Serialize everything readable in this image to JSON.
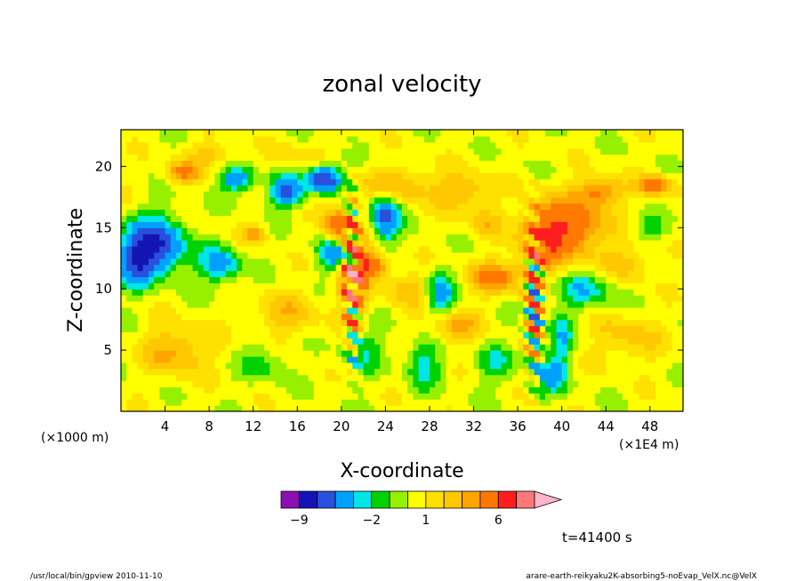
{
  "chart_data": {
    "type": "heatmap",
    "title": "zonal velocity",
    "xlabel": "X-coordinate",
    "ylabel": "Z-coordinate",
    "x_unit_left": "(×1000 m)",
    "x_unit_right": "(×1E4 m)",
    "xlim": [
      0,
      51
    ],
    "ylim": [
      0,
      23
    ],
    "x_ticks": [
      4,
      8,
      12,
      16,
      20,
      24,
      28,
      32,
      36,
      40,
      44,
      48
    ],
    "y_ticks": [
      5,
      10,
      15,
      20
    ],
    "x_tick_labels": [
      "4",
      "8",
      "12",
      "16",
      "20",
      "24",
      "28",
      "32",
      "36",
      "40",
      "44",
      "48"
    ],
    "y_tick_labels": [
      "5",
      "10",
      "15",
      "20"
    ],
    "grid": false,
    "colorbar": {
      "levels": [
        -12,
        -9,
        -7,
        -5,
        -3,
        -2,
        -1,
        0,
        1,
        2,
        3,
        4,
        6,
        9,
        12
      ],
      "colors": [
        "#e60aa5",
        "#8c0fb4",
        "#1414b4",
        "#2850dc",
        "#00a0ff",
        "#00e6e6",
        "#00d200",
        "#96f000",
        "#ffff00",
        "#ffe100",
        "#ffc800",
        "#ffa500",
        "#ff7800",
        "#ff1e1e",
        "#ff7878",
        "#ffb4c8"
      ],
      "labels": [
        {
          "value": -9,
          "text": "−9"
        },
        {
          "value": -2,
          "text": "−2"
        },
        {
          "value": 1,
          "text": "1"
        },
        {
          "value": 6,
          "text": "6"
        }
      ],
      "extend": "max"
    },
    "time_label": "t=41400 s",
    "footer_left": "/usr/local/bin/gpview  2010-11-10",
    "footer_right": "arare-earth-reikyaku2K-absorbing5-noEvap_VelX.nc@VelX",
    "field_features": [
      {
        "x": 21,
        "z": 11,
        "amp": 9,
        "note": "convective column, strong positive/negative alternation"
      },
      {
        "x": 37.5,
        "z": 9,
        "amp": 9,
        "note": "convective column, strong positive/negative alternation"
      },
      {
        "x": 3,
        "z": 13.5,
        "amp": -8,
        "note": "blue minimum, upper left"
      },
      {
        "x": 41,
        "z": 15,
        "amp": 5,
        "note": "orange maximum, upper right"
      }
    ]
  }
}
